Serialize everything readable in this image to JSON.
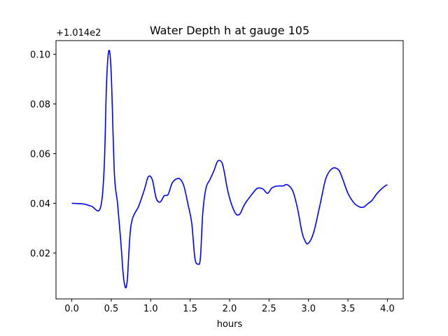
{
  "chart_data": {
    "type": "line",
    "title": "Water Depth h at gauge 105",
    "xlabel": "hours",
    "ylabel": "",
    "y_offset_label": "+1.014e2",
    "xlim": [
      -0.2,
      4.2
    ],
    "ylim": [
      0.0015,
      0.1055
    ],
    "xticks": [
      0.0,
      0.5,
      1.0,
      1.5,
      2.0,
      2.5,
      3.0,
      3.5,
      4.0
    ],
    "xtick_labels": [
      "0.0",
      "0.5",
      "1.0",
      "1.5",
      "2.0",
      "2.5",
      "3.0",
      "3.5",
      "4.0"
    ],
    "yticks": [
      0.02,
      0.04,
      0.06,
      0.08,
      0.1
    ],
    "ytick_labels": [
      "0.02",
      "0.04",
      "0.06",
      "0.08",
      "0.10"
    ],
    "grid": false,
    "color": "#0000ff",
    "series": [
      {
        "x": [
          0.0,
          0.15,
          0.25,
          0.36,
          0.41,
          0.44,
          0.47,
          0.5,
          0.54,
          0.58,
          0.62,
          0.66,
          0.7,
          0.75,
          0.85,
          0.92,
          0.97,
          1.02,
          1.07,
          1.12,
          1.17,
          1.22,
          1.27,
          1.32,
          1.37,
          1.42,
          1.47,
          1.52,
          1.56,
          1.6,
          1.63,
          1.66,
          1.7,
          1.75,
          1.8,
          1.85,
          1.9,
          1.93,
          1.97,
          2.02,
          2.08,
          2.13,
          2.18,
          2.22,
          2.28,
          2.35,
          2.42,
          2.48,
          2.53,
          2.58,
          2.63,
          2.68,
          2.73,
          2.8,
          2.86,
          2.92,
          2.97,
          3.0,
          3.04,
          3.08,
          3.15,
          3.22,
          3.3,
          3.38,
          3.43,
          3.5,
          3.58,
          3.65,
          3.7,
          3.75,
          3.8,
          3.87,
          3.95,
          4.0
        ],
        "y": [
          0.04,
          0.0397,
          0.0388,
          0.0379,
          0.054,
          0.088,
          0.1015,
          0.092,
          0.052,
          0.04,
          0.025,
          0.009,
          0.008,
          0.031,
          0.039,
          0.0455,
          0.0507,
          0.0495,
          0.042,
          0.0405,
          0.043,
          0.0435,
          0.048,
          0.0497,
          0.0498,
          0.047,
          0.04,
          0.032,
          0.018,
          0.0155,
          0.018,
          0.036,
          0.046,
          0.0495,
          0.053,
          0.057,
          0.0565,
          0.053,
          0.046,
          0.04,
          0.0357,
          0.0357,
          0.039,
          0.041,
          0.0435,
          0.046,
          0.0458,
          0.044,
          0.046,
          0.0468,
          0.047,
          0.047,
          0.0475,
          0.045,
          0.038,
          0.028,
          0.024,
          0.024,
          0.026,
          0.03,
          0.04,
          0.05,
          0.054,
          0.0535,
          0.05,
          0.044,
          0.04,
          0.0385,
          0.0385,
          0.0398,
          0.041,
          0.044,
          0.0465,
          0.0475
        ]
      }
    ]
  }
}
